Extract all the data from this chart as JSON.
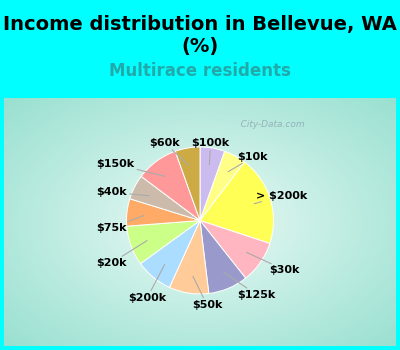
{
  "title": "Income distribution in Bellevue, WA\n(%)",
  "subtitle": "Multirace residents",
  "fig_bg_color": "#00FFFF",
  "chart_bg_start": "#b2dfdb",
  "chart_bg_end": "#e8f8f5",
  "labels": [
    "$100k",
    "$10k",
    "> $200k",
    "$30k",
    "$125k",
    "$50k",
    "$200k",
    "$20k",
    "$75k",
    "$40k",
    "$150k",
    "$60k"
  ],
  "values": [
    5.0,
    4.5,
    18.0,
    8.5,
    8.0,
    8.0,
    7.5,
    8.0,
    5.5,
    5.0,
    8.5,
    5.0
  ],
  "colors": [
    "#CCBBEE",
    "#FFFF88",
    "#FFFF55",
    "#FFB6C1",
    "#9999CC",
    "#FFCC99",
    "#AADDFF",
    "#CCFF88",
    "#FFAA66",
    "#CCBBAA",
    "#FF9999",
    "#CCAA44"
  ],
  "title_fontsize": 14,
  "subtitle_fontsize": 12,
  "subtitle_color": "#22AAAA",
  "label_fontsize": 8,
  "watermark": "   City-Data.com"
}
